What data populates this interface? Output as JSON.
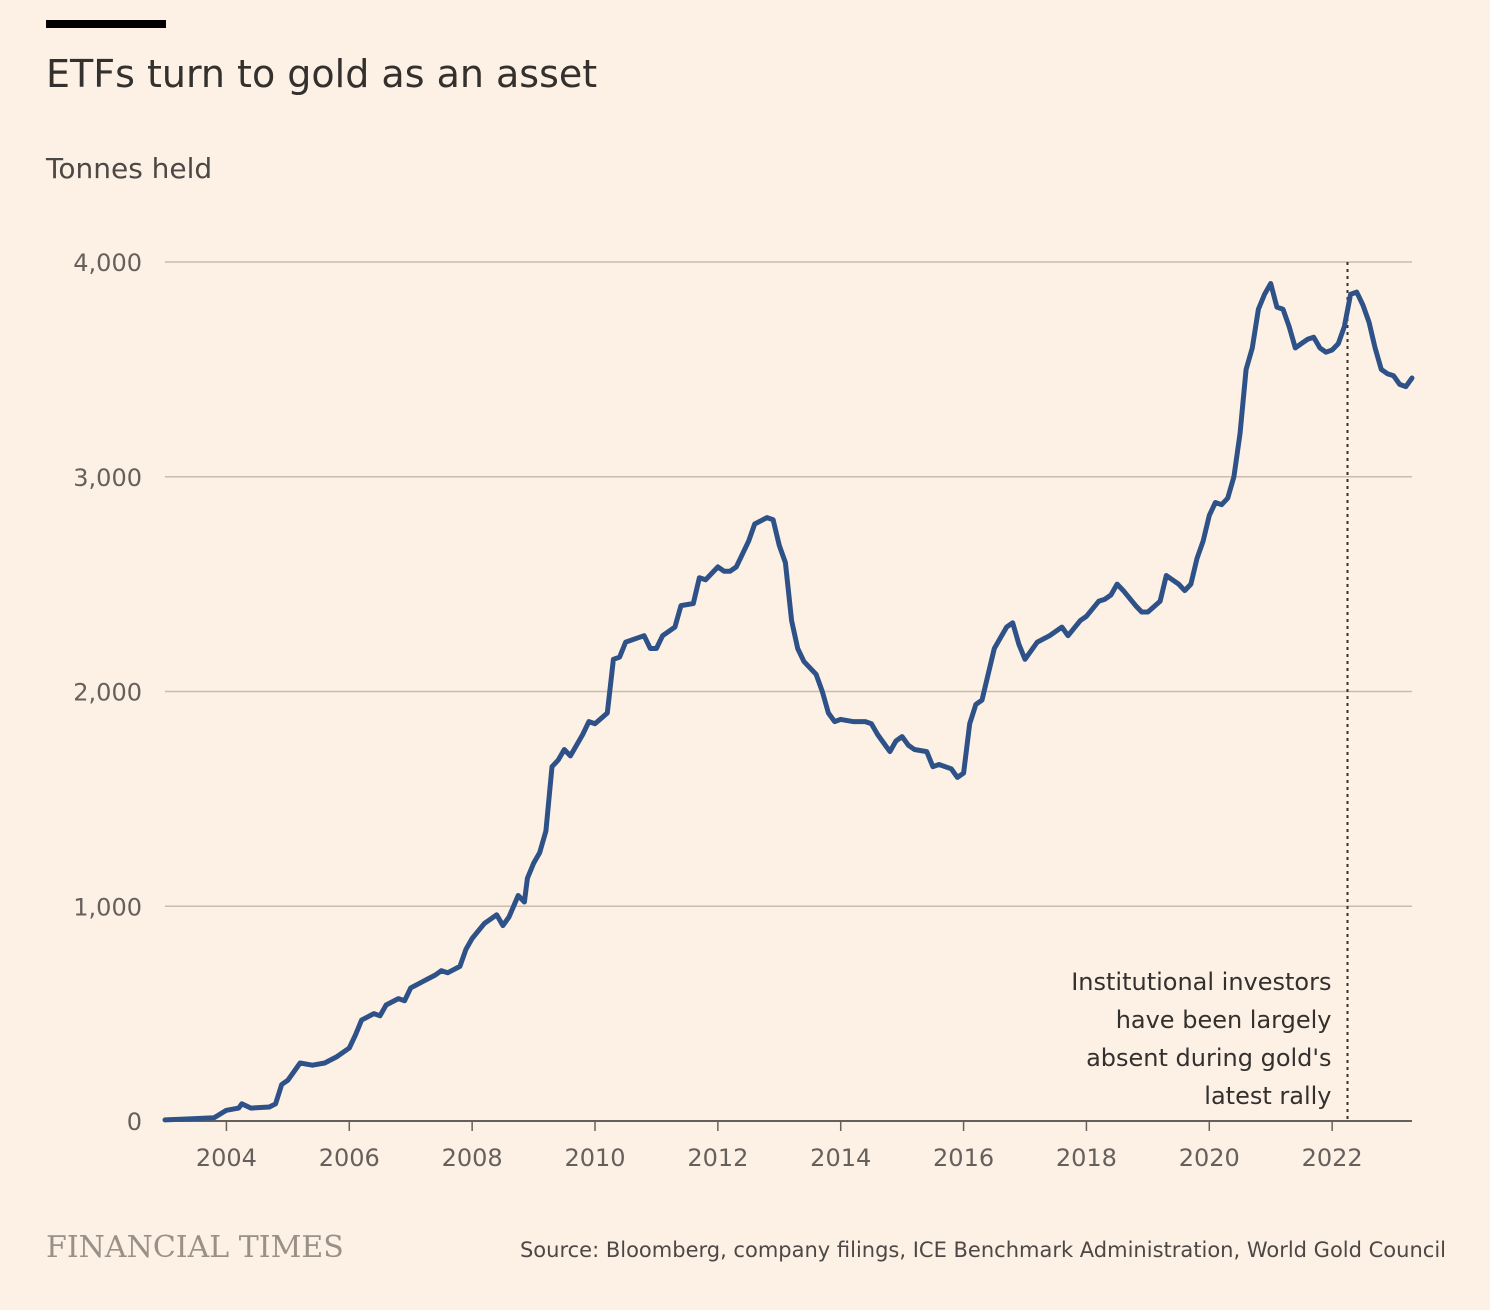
{
  "header": {
    "title": "ETFs turn to gold as an asset",
    "subtitle": "Tonnes held"
  },
  "footer": {
    "brand": "FINANCIAL TIMES",
    "source": "Source: Bloomberg, company filings, ICE Benchmark Administration, World Gold Council"
  },
  "chart_data": {
    "type": "line",
    "title": "ETFs turn to gold as an asset",
    "ylabel": "Tonnes held",
    "xlabel": "",
    "xlim": [
      2003.0,
      2023.3
    ],
    "ylim": [
      0,
      4000
    ],
    "y_ticks": [
      0,
      1000,
      2000,
      3000,
      4000
    ],
    "y_tick_labels": [
      "0",
      "1,000",
      "2,000",
      "3,000",
      "4,000"
    ],
    "x_ticks": [
      2004,
      2006,
      2008,
      2010,
      2012,
      2014,
      2016,
      2018,
      2020,
      2022
    ],
    "x_tick_labels": [
      "2004",
      "2006",
      "2008",
      "2010",
      "2012",
      "2014",
      "2016",
      "2018",
      "2020",
      "2022"
    ],
    "grid": true,
    "line_color": "#2e5288",
    "annotation": {
      "x": 2022.25,
      "lines": [
        "Institutional investors",
        "have been largely",
        "absent during gold's",
        "latest rally"
      ]
    },
    "series": [
      {
        "values": [
          [
            2003.0,
            5
          ],
          [
            2003.4,
            10
          ],
          [
            2003.8,
            15
          ],
          [
            2004.0,
            50
          ],
          [
            2004.2,
            60
          ],
          [
            2004.25,
            80
          ],
          [
            2004.4,
            60
          ],
          [
            2004.7,
            65
          ],
          [
            2004.8,
            80
          ],
          [
            2004.9,
            170
          ],
          [
            2005.0,
            190
          ],
          [
            2005.2,
            270
          ],
          [
            2005.4,
            260
          ],
          [
            2005.6,
            270
          ],
          [
            2005.8,
            300
          ],
          [
            2006.0,
            340
          ],
          [
            2006.1,
            400
          ],
          [
            2006.2,
            470
          ],
          [
            2006.4,
            500
          ],
          [
            2006.5,
            490
          ],
          [
            2006.6,
            540
          ],
          [
            2006.8,
            570
          ],
          [
            2006.9,
            560
          ],
          [
            2007.0,
            620
          ],
          [
            2007.2,
            650
          ],
          [
            2007.4,
            680
          ],
          [
            2007.5,
            700
          ],
          [
            2007.6,
            690
          ],
          [
            2007.8,
            720
          ],
          [
            2007.9,
            800
          ],
          [
            2008.0,
            850
          ],
          [
            2008.2,
            920
          ],
          [
            2008.4,
            960
          ],
          [
            2008.5,
            910
          ],
          [
            2008.6,
            950
          ],
          [
            2008.75,
            1050
          ],
          [
            2008.85,
            1020
          ],
          [
            2008.9,
            1130
          ],
          [
            2009.0,
            1200
          ],
          [
            2009.1,
            1250
          ],
          [
            2009.2,
            1350
          ],
          [
            2009.3,
            1650
          ],
          [
            2009.4,
            1680
          ],
          [
            2009.5,
            1730
          ],
          [
            2009.6,
            1700
          ],
          [
            2009.8,
            1800
          ],
          [
            2009.9,
            1860
          ],
          [
            2010.0,
            1850
          ],
          [
            2010.2,
            1900
          ],
          [
            2010.3,
            2150
          ],
          [
            2010.4,
            2160
          ],
          [
            2010.5,
            2230
          ],
          [
            2010.7,
            2250
          ],
          [
            2010.8,
            2260
          ],
          [
            2010.9,
            2200
          ],
          [
            2011.0,
            2200
          ],
          [
            2011.1,
            2260
          ],
          [
            2011.2,
            2280
          ],
          [
            2011.3,
            2300
          ],
          [
            2011.4,
            2400
          ],
          [
            2011.6,
            2410
          ],
          [
            2011.7,
            2530
          ],
          [
            2011.8,
            2520
          ],
          [
            2011.9,
            2550
          ],
          [
            2012.0,
            2580
          ],
          [
            2012.1,
            2560
          ],
          [
            2012.2,
            2560
          ],
          [
            2012.3,
            2580
          ],
          [
            2012.5,
            2700
          ],
          [
            2012.6,
            2780
          ],
          [
            2012.8,
            2810
          ],
          [
            2012.9,
            2800
          ],
          [
            2013.0,
            2680
          ],
          [
            2013.1,
            2600
          ],
          [
            2013.2,
            2330
          ],
          [
            2013.3,
            2200
          ],
          [
            2013.4,
            2140
          ],
          [
            2013.5,
            2110
          ],
          [
            2013.6,
            2080
          ],
          [
            2013.7,
            2000
          ],
          [
            2013.8,
            1900
          ],
          [
            2013.9,
            1860
          ],
          [
            2014.0,
            1870
          ],
          [
            2014.2,
            1860
          ],
          [
            2014.4,
            1860
          ],
          [
            2014.5,
            1850
          ],
          [
            2014.6,
            1800
          ],
          [
            2014.7,
            1760
          ],
          [
            2014.8,
            1720
          ],
          [
            2014.9,
            1770
          ],
          [
            2015.0,
            1790
          ],
          [
            2015.1,
            1750
          ],
          [
            2015.2,
            1730
          ],
          [
            2015.4,
            1720
          ],
          [
            2015.5,
            1650
          ],
          [
            2015.6,
            1660
          ],
          [
            2015.8,
            1640
          ],
          [
            2015.9,
            1600
          ],
          [
            2016.0,
            1620
          ],
          [
            2016.1,
            1850
          ],
          [
            2016.2,
            1940
          ],
          [
            2016.3,
            1960
          ],
          [
            2016.5,
            2200
          ],
          [
            2016.7,
            2300
          ],
          [
            2016.8,
            2320
          ],
          [
            2016.9,
            2220
          ],
          [
            2017.0,
            2150
          ],
          [
            2017.2,
            2230
          ],
          [
            2017.4,
            2260
          ],
          [
            2017.6,
            2300
          ],
          [
            2017.7,
            2260
          ],
          [
            2017.9,
            2330
          ],
          [
            2018.0,
            2350
          ],
          [
            2018.2,
            2420
          ],
          [
            2018.3,
            2430
          ],
          [
            2018.4,
            2450
          ],
          [
            2018.5,
            2500
          ],
          [
            2018.6,
            2470
          ],
          [
            2018.8,
            2400
          ],
          [
            2018.9,
            2370
          ],
          [
            2019.0,
            2370
          ],
          [
            2019.2,
            2420
          ],
          [
            2019.3,
            2540
          ],
          [
            2019.4,
            2520
          ],
          [
            2019.5,
            2500
          ],
          [
            2019.6,
            2470
          ],
          [
            2019.7,
            2500
          ],
          [
            2019.8,
            2620
          ],
          [
            2019.9,
            2700
          ],
          [
            2020.0,
            2820
          ],
          [
            2020.1,
            2880
          ],
          [
            2020.2,
            2870
          ],
          [
            2020.3,
            2900
          ],
          [
            2020.4,
            3000
          ],
          [
            2020.5,
            3200
          ],
          [
            2020.6,
            3500
          ],
          [
            2020.7,
            3600
          ],
          [
            2020.8,
            3780
          ],
          [
            2020.9,
            3850
          ],
          [
            2021.0,
            3900
          ],
          [
            2021.1,
            3790
          ],
          [
            2021.2,
            3780
          ],
          [
            2021.3,
            3700
          ],
          [
            2021.4,
            3600
          ],
          [
            2021.5,
            3620
          ],
          [
            2021.6,
            3640
          ],
          [
            2021.7,
            3650
          ],
          [
            2021.8,
            3600
          ],
          [
            2021.9,
            3580
          ],
          [
            2022.0,
            3590
          ],
          [
            2022.1,
            3620
          ],
          [
            2022.2,
            3700
          ],
          [
            2022.3,
            3850
          ],
          [
            2022.4,
            3860
          ],
          [
            2022.5,
            3800
          ],
          [
            2022.6,
            3720
          ],
          [
            2022.7,
            3600
          ],
          [
            2022.8,
            3500
          ],
          [
            2022.9,
            3480
          ],
          [
            2023.0,
            3470
          ],
          [
            2023.1,
            3430
          ],
          [
            2023.2,
            3420
          ],
          [
            2023.3,
            3460
          ]
        ]
      }
    ]
  }
}
